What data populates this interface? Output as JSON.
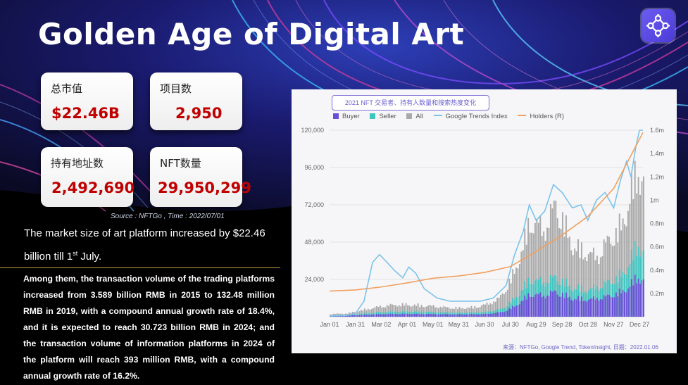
{
  "title": "Golden Age of Digital Art",
  "logo_icon": "network-nodes-icon",
  "colors": {
    "accent_red": "#c00000",
    "buyer": "#6a4fd6",
    "seller": "#3ec4c0",
    "all": "#a9a9a9",
    "google": "#7cc3ec",
    "holders": "#f0a060",
    "divider": "#c49a3a"
  },
  "stats": [
    {
      "label": "总市值",
      "value": "$22.46B"
    },
    {
      "label": "项目数",
      "value": "2,950"
    },
    {
      "label": "持有地址数",
      "value": "2,492,690"
    },
    {
      "label": "NFT数量",
      "value": "29,950,299"
    }
  ],
  "source_note": "Source : NFTGo , Time : 2022/07/01",
  "headline": {
    "text": "The market size of art platform increased by $22.46 billion till 1",
    "sup": "st",
    "suffix": " July."
  },
  "paragraph": "Among them, the transaction volume of the trading platforms increased from 3.589 billion RMB in 2015 to 132.48 million RMB in 2019, with a compound annual growth rate of 18.4%, and it is expected to reach 30.723 billion RMB in 2024; and the transaction volume of information platforms in 2024 of the platform will reach 393 million RMB, with a compound annual growth rate of 16.2%.",
  "chart_data": {
    "type": "bar",
    "title": "2021 NFT 交易者、持有人数量和搜索热度变化",
    "legend": [
      "Buyer",
      "Seller",
      "All",
      "Google Trends Index",
      "Holders (R)"
    ],
    "legend_position": "top",
    "x_ticks": [
      "Jan 01",
      "Jan 31",
      "Mar 02",
      "Apr 01",
      "May 01",
      "May 31",
      "Jun 30",
      "Jul 30",
      "Aug 29",
      "Sep 28",
      "Oct 28",
      "Nov 27",
      "Dec 27"
    ],
    "y_ticks_left": [
      "24,000",
      "48,000",
      "72,000",
      "96,000",
      "120,000"
    ],
    "y_ticks_right": [
      "0.2m",
      "0.4m",
      "0.6m",
      "0.8m",
      "1m",
      "1.2m",
      "1.4m",
      "1.6m"
    ],
    "ylim_left": [
      0,
      120000
    ],
    "ylim_right": [
      0,
      1600000
    ],
    "grid": "horizontal",
    "series_points": {
      "note_x": "days since Jan 01 2021",
      "all": [
        [
          0,
          2000
        ],
        [
          20,
          2500
        ],
        [
          30,
          4000
        ],
        [
          45,
          6000
        ],
        [
          60,
          8000
        ],
        [
          75,
          9000
        ],
        [
          90,
          9000
        ],
        [
          105,
          8500
        ],
        [
          120,
          8000
        ],
        [
          135,
          7000
        ],
        [
          150,
          6500
        ],
        [
          165,
          7000
        ],
        [
          180,
          9000
        ],
        [
          195,
          13000
        ],
        [
          205,
          22000
        ],
        [
          215,
          35000
        ],
        [
          225,
          55000
        ],
        [
          232,
          72000
        ],
        [
          240,
          70000
        ],
        [
          248,
          65000
        ],
        [
          255,
          75000
        ],
        [
          262,
          85000
        ],
        [
          270,
          73000
        ],
        [
          280,
          55000
        ],
        [
          290,
          50000
        ],
        [
          300,
          48000
        ],
        [
          310,
          45000
        ],
        [
          320,
          55000
        ],
        [
          330,
          62000
        ],
        [
          340,
          70000
        ],
        [
          350,
          95000
        ],
        [
          358,
          110000
        ],
        [
          364,
          105000
        ]
      ],
      "seller": [
        [
          0,
          1000
        ],
        [
          30,
          2000
        ],
        [
          60,
          3500
        ],
        [
          90,
          4000
        ],
        [
          120,
          3500
        ],
        [
          150,
          3000
        ],
        [
          180,
          3500
        ],
        [
          200,
          6000
        ],
        [
          215,
          14000
        ],
        [
          232,
          28000
        ],
        [
          248,
          26000
        ],
        [
          262,
          30000
        ],
        [
          280,
          22000
        ],
        [
          300,
          20000
        ],
        [
          320,
          25000
        ],
        [
          340,
          32000
        ],
        [
          358,
          55000
        ],
        [
          364,
          50000
        ]
      ],
      "buyer": [
        [
          0,
          600
        ],
        [
          30,
          1200
        ],
        [
          60,
          2000
        ],
        [
          90,
          2200
        ],
        [
          120,
          2000
        ],
        [
          150,
          1800
        ],
        [
          180,
          2000
        ],
        [
          200,
          3500
        ],
        [
          215,
          8000
        ],
        [
          232,
          17000
        ],
        [
          248,
          16000
        ],
        [
          262,
          19000
        ],
        [
          280,
          14000
        ],
        [
          300,
          13000
        ],
        [
          320,
          15000
        ],
        [
          340,
          19000
        ],
        [
          358,
          30000
        ],
        [
          364,
          28000
        ]
      ],
      "google": [
        [
          0,
          500
        ],
        [
          20,
          800
        ],
        [
          30,
          2000
        ],
        [
          40,
          10000
        ],
        [
          50,
          35000
        ],
        [
          58,
          40000
        ],
        [
          65,
          36000
        ],
        [
          75,
          30000
        ],
        [
          85,
          25000
        ],
        [
          92,
          32000
        ],
        [
          100,
          28000
        ],
        [
          110,
          18000
        ],
        [
          125,
          12000
        ],
        [
          140,
          10000
        ],
        [
          160,
          10000
        ],
        [
          175,
          10000
        ],
        [
          190,
          12000
        ],
        [
          205,
          20000
        ],
        [
          215,
          40000
        ],
        [
          225,
          55000
        ],
        [
          232,
          72000
        ],
        [
          240,
          62000
        ],
        [
          250,
          68000
        ],
        [
          260,
          85000
        ],
        [
          270,
          80000
        ],
        [
          282,
          70000
        ],
        [
          292,
          72000
        ],
        [
          300,
          62000
        ],
        [
          310,
          75000
        ],
        [
          320,
          80000
        ],
        [
          330,
          70000
        ],
        [
          338,
          88000
        ],
        [
          345,
          100000
        ],
        [
          350,
          90000
        ],
        [
          356,
          110000
        ],
        [
          360,
          120000
        ],
        [
          364,
          120000
        ]
      ],
      "holders": [
        [
          0,
          220000
        ],
        [
          30,
          230000
        ],
        [
          60,
          255000
        ],
        [
          90,
          290000
        ],
        [
          120,
          330000
        ],
        [
          150,
          350000
        ],
        [
          180,
          380000
        ],
        [
          210,
          430000
        ],
        [
          240,
          560000
        ],
        [
          270,
          700000
        ],
        [
          300,
          860000
        ],
        [
          330,
          1100000
        ],
        [
          364,
          1580000
        ]
      ]
    }
  },
  "chart_credit": "来源：NFTGo, Google Trend, TokenInsight, 日期：2022.01.06"
}
